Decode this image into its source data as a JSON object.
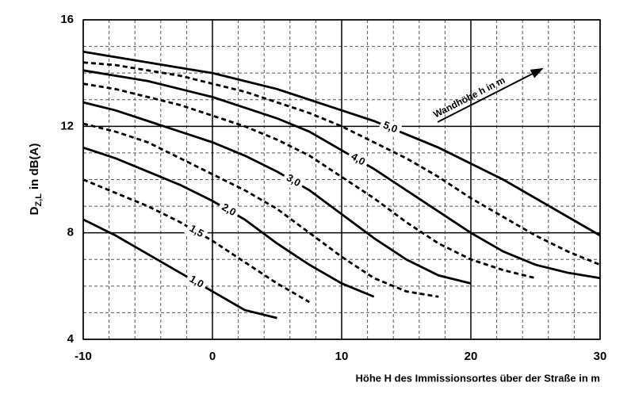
{
  "chart_data": {
    "type": "line",
    "y_label": {
      "main": "D",
      "sub": "Z,L",
      "rest": "in dB(A)"
    },
    "x_label": "Höhe H des Immissionsortes über der Straße in m",
    "annotation": "Wandhöhe h in m",
    "x": [
      -10,
      -7.5,
      -5,
      -2.5,
      0,
      2.5,
      5,
      7.5,
      10,
      12.5,
      15,
      17.5,
      20,
      22.5,
      25,
      27.5,
      30
    ],
    "series": [
      {
        "name": "1,0",
        "color": "#000000",
        "dashed": false,
        "values": [
          8.5,
          7.9,
          7.2,
          6.5,
          5.8,
          5.1,
          4.8,
          null,
          null,
          null,
          null,
          null,
          null,
          null,
          null,
          null,
          null
        ]
      },
      {
        "name": "1,5",
        "color": "#000000",
        "dashed": true,
        "values": [
          10.0,
          9.5,
          9.0,
          8.4,
          7.7,
          6.9,
          6.1,
          5.4,
          null,
          null,
          null,
          null,
          null,
          null,
          null,
          null,
          null
        ]
      },
      {
        "name": "2,0",
        "color": "#000000",
        "dashed": false,
        "values": [
          11.2,
          10.8,
          10.3,
          9.8,
          9.2,
          8.5,
          7.6,
          6.8,
          6.1,
          5.6,
          null,
          null,
          null,
          null,
          null,
          null,
          null
        ]
      },
      {
        "name": null,
        "color": "#000000",
        "dashed": true,
        "values": [
          12.1,
          11.8,
          11.4,
          10.8,
          10.2,
          9.6,
          8.9,
          8.0,
          7.1,
          6.3,
          5.8,
          5.6,
          null,
          null,
          null,
          null,
          null
        ]
      },
      {
        "name": "3,0",
        "color": "#000000",
        "dashed": false,
        "values": [
          12.9,
          12.6,
          12.2,
          11.8,
          11.4,
          10.9,
          10.3,
          9.6,
          8.7,
          7.8,
          7.0,
          6.4,
          6.1,
          null,
          null,
          null,
          null
        ]
      },
      {
        "name": null,
        "color": "#000000",
        "dashed": true,
        "values": [
          13.6,
          13.4,
          13.1,
          12.8,
          12.4,
          12.0,
          11.5,
          10.9,
          10.1,
          9.3,
          8.4,
          7.6,
          7.0,
          6.6,
          6.3,
          null,
          null
        ]
      },
      {
        "name": "4,0",
        "color": "#000000",
        "dashed": false,
        "values": [
          14.1,
          13.9,
          13.7,
          13.4,
          13.1,
          12.7,
          12.3,
          11.8,
          11.1,
          10.4,
          9.6,
          8.8,
          8.0,
          7.3,
          6.8,
          6.5,
          6.3
        ]
      },
      {
        "name": null,
        "color": "#000000",
        "dashed": true,
        "values": [
          14.4,
          14.3,
          14.1,
          13.9,
          13.6,
          13.3,
          12.9,
          12.5,
          12.0,
          11.4,
          10.8,
          10.1,
          9.3,
          8.6,
          7.9,
          7.3,
          6.8
        ]
      },
      {
        "name": "5,0",
        "color": "#000000",
        "dashed": false,
        "values": [
          14.8,
          14.6,
          14.4,
          14.2,
          14.0,
          13.7,
          13.4,
          13.0,
          12.6,
          12.2,
          11.7,
          11.2,
          10.6,
          10.0,
          9.3,
          8.6,
          7.9
        ]
      }
    ],
    "xlim": [
      -10,
      30
    ],
    "ylim": [
      4,
      16
    ],
    "xticks": [
      -10,
      0,
      10,
      20,
      30
    ],
    "yticks": [
      4,
      8,
      12,
      16
    ],
    "x_minor_ticks": [
      -8,
      -6,
      -4,
      -2,
      2,
      4,
      6,
      8,
      12,
      14,
      16,
      18,
      22,
      24,
      26,
      28
    ],
    "y_minor_ticks": [
      5,
      6,
      7,
      9,
      10,
      11,
      13,
      14,
      15
    ],
    "grid": true
  }
}
